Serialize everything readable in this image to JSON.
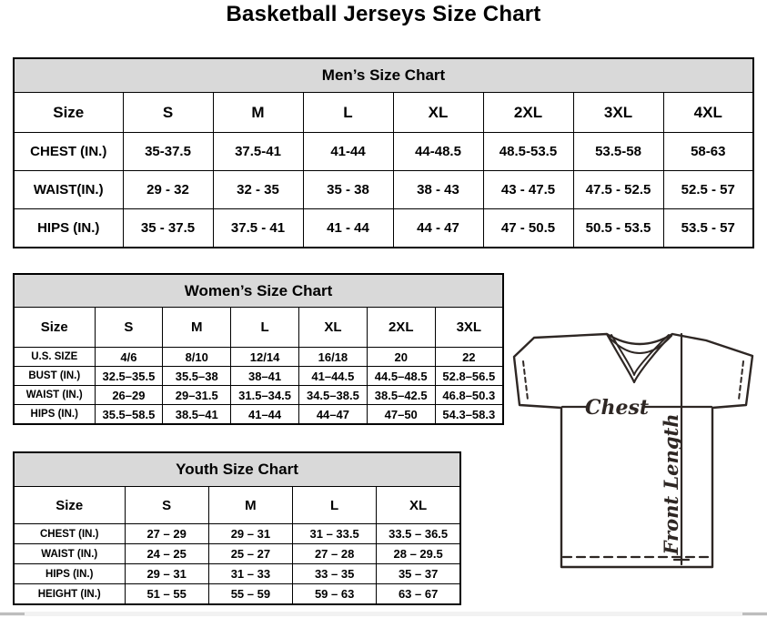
{
  "page_title": "Basketball Jerseys Size Chart",
  "men_table": {
    "title": "Men’s Size Chart",
    "columns": [
      "Size",
      "S",
      "M",
      "L",
      "XL",
      "2XL",
      "3XL",
      "4XL"
    ],
    "rows": [
      {
        "label": "CHEST (IN.)",
        "values": [
          "35-37.5",
          "37.5-41",
          "41-44",
          "44-48.5",
          "48.5-53.5",
          "53.5-58",
          "58-63"
        ]
      },
      {
        "label": "WAIST(IN.)",
        "values": [
          "29 - 32",
          "32 - 35",
          "35 - 38",
          "38 - 43",
          "43 - 47.5",
          "47.5 - 52.5",
          "52.5 - 57"
        ]
      },
      {
        "label": "HIPS (IN.)",
        "values": [
          "35 - 37.5",
          "37.5 - 41",
          "41 - 44",
          "44 - 47",
          "47 - 50.5",
          "50.5 - 53.5",
          "53.5 - 57"
        ]
      }
    ]
  },
  "women_table": {
    "title": "Women’s Size Chart",
    "columns": [
      "Size",
      "S",
      "M",
      "L",
      "XL",
      "2XL",
      "3XL"
    ],
    "rows": [
      {
        "label": "U.S. SIZE",
        "values": [
          "4/6",
          "8/10",
          "12/14",
          "16/18",
          "20",
          "22"
        ]
      },
      {
        "label": "BUST (IN.)",
        "values": [
          "32.5–35.5",
          "35.5–38",
          "38–41",
          "41–44.5",
          "44.5–48.5",
          "52.8–56.5"
        ]
      },
      {
        "label": "WAIST (IN.)",
        "values": [
          "26–29",
          "29–31.5",
          "31.5–34.5",
          "34.5–38.5",
          "38.5–42.5",
          "46.8–50.3"
        ]
      },
      {
        "label": "HIPS (IN.)",
        "values": [
          "35.5–58.5",
          "38.5–41",
          "41–44",
          "44–47",
          "47–50",
          "54.3–58.3"
        ]
      }
    ]
  },
  "youth_table": {
    "title": "Youth Size Chart",
    "columns": [
      "Size",
      "S",
      "M",
      "L",
      "XL"
    ],
    "rows": [
      {
        "label": "CHEST (IN.)",
        "values": [
          "27 – 29",
          "29 – 31",
          "31 – 33.5",
          "33.5 – 36.5"
        ]
      },
      {
        "label": "WAIST (IN.)",
        "values": [
          "24 – 25",
          "25 – 27",
          "27 – 28",
          "28 – 29.5"
        ]
      },
      {
        "label": "HIPS (IN.)",
        "values": [
          "29 – 31",
          "31 – 33",
          "33 – 35",
          "35 – 37"
        ]
      },
      {
        "label": "HEIGHT (IN.)",
        "values": [
          "51 – 55",
          "55 – 59",
          "59 – 63",
          "63 – 67"
        ]
      }
    ]
  },
  "diagram": {
    "chest_label": "Chest",
    "front_length_label": "Front Length"
  },
  "colors": {
    "table_band_gray": "#d9d9d9",
    "border_black": "#000000",
    "diagram_ink": "#2e2724",
    "scrollbar_gray": "#bdbdbd"
  },
  "label_column_widths": {
    "men": 120,
    "women": 89,
    "youth": 122
  }
}
